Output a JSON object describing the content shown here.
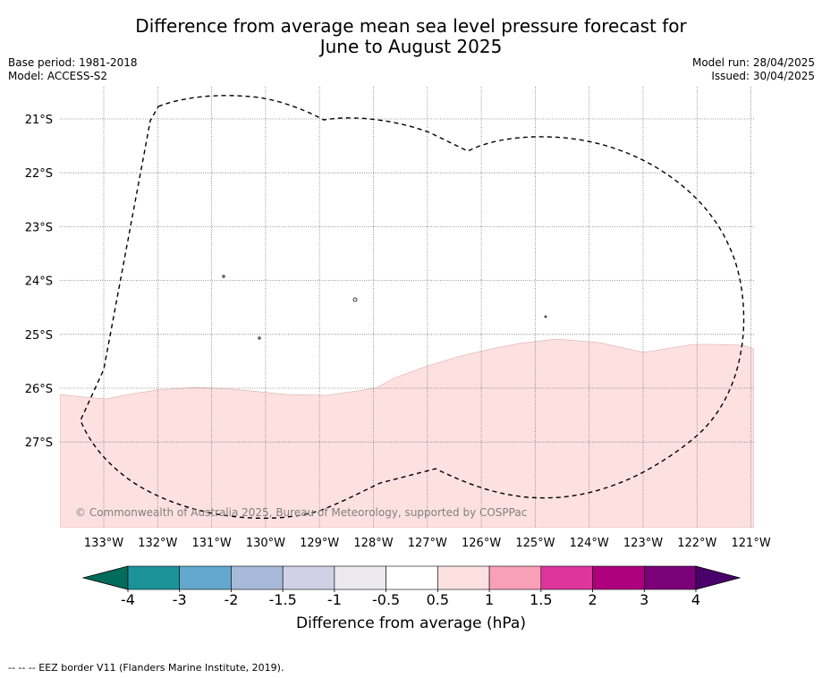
{
  "header": {
    "title_line1": "Difference from average mean sea level pressure forecast for",
    "title_line2": "June to August 2025",
    "base_period": "Base period: 1981-2018",
    "model": "Model: ACCESS-S2",
    "model_run": "Model run: 28/04/2025",
    "issued": "Issued: 30/04/2025"
  },
  "map": {
    "lon_labels": [
      "133°W",
      "132°W",
      "131°W",
      "130°W",
      "129°W",
      "128°W",
      "127°W",
      "126°W",
      "125°W",
      "124°W",
      "123°W",
      "122°W",
      "121°W"
    ],
    "lat_labels": [
      "21°S",
      "22°S",
      "23°S",
      "24°S",
      "25°S",
      "26°S",
      "27°S"
    ],
    "copyright": "© Commonwealth of Australia 2025, Bureau of Meteorology, supported by COSPPac",
    "fill_color": "#fde0e0",
    "fill_category": "0.5 to 1"
  },
  "colorbar": {
    "ticks": [
      "-4",
      "-3",
      "-2",
      "-1.5",
      "-1",
      "-0.5",
      "0.5",
      "1",
      "1.5",
      "2",
      "3",
      "4"
    ],
    "colors": [
      "#1a9298",
      "#62a8cf",
      "#a7b9d9",
      "#d0d1e7",
      "#ebe9ee",
      "#ffffff",
      "#fde0e0",
      "#f9a0b8",
      "#dd359c",
      "#ae017e",
      "#7a0177"
    ],
    "under_color": "#016c59",
    "over_color": "#49006a",
    "label": "Difference from average (hPa)"
  },
  "footnote": "--  --  -- EEZ border V11 (Flanders Marine Institute, 2019)."
}
